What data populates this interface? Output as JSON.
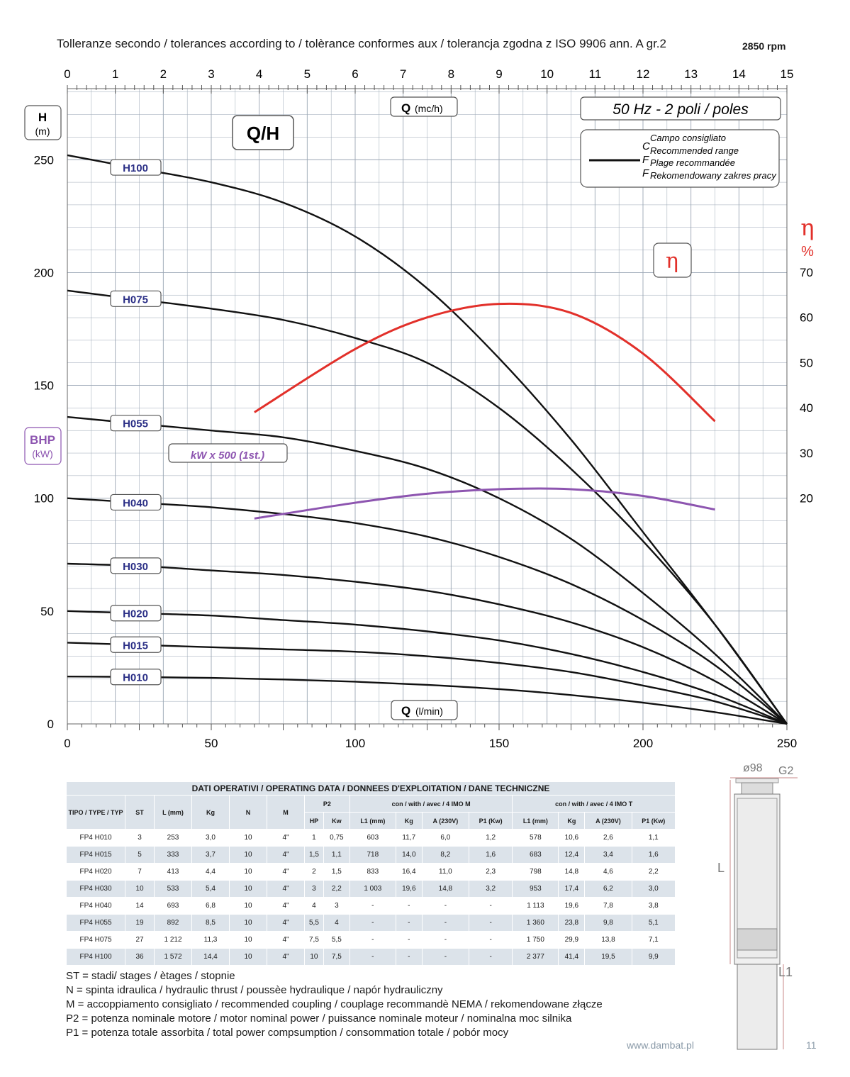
{
  "header": {
    "tolerance_text": "Tolleranze secondo / tolerances according to / tolèrance conformes aux / tolerancja zgodna z ISO 9906 ann. A gr.2",
    "rpm": "2850 rpm"
  },
  "chart_data": {
    "type": "line",
    "title": "Q/H",
    "frequency_label": "50 Hz - 2 poli / poles",
    "x_top_label": "Q (mc/h)",
    "x_top_label_main": "Q",
    "x_top_label_unit": "(mc/h)",
    "x_bottom_label_main": "Q",
    "x_bottom_label_unit": "(l/min)",
    "y_left_label_main": "H",
    "y_left_label_unit": "(m)",
    "y_right_label_main": "η",
    "y_right_label_unit": "%",
    "eta_box_label": "η",
    "bhp_label_main": "BHP",
    "bhp_label_unit": "(kW)",
    "bhp_note": "kW x 500 (1st.)",
    "legend_lines": [
      "Campo consigliato",
      "Recommended range",
      "Plage recommandée",
      "Rekomendowany zakres pracy"
    ],
    "legend_letters": [
      "C",
      "F",
      "F"
    ],
    "xlim_top": [
      0,
      15
    ],
    "xlim_bottom": [
      0,
      250
    ],
    "ylim_left": [
      0,
      280
    ],
    "ylim_right_ticks": [
      20,
      30,
      40,
      50,
      60,
      70
    ],
    "x_top_ticks": [
      0,
      1,
      2,
      3,
      4,
      5,
      6,
      7,
      8,
      9,
      10,
      11,
      12,
      13,
      14,
      15
    ],
    "x_bottom_ticks": [
      0,
      50,
      100,
      150,
      200,
      250
    ],
    "y_left_ticks": [
      0,
      50,
      100,
      150,
      200,
      250
    ],
    "series": [
      {
        "name": "H100",
        "x": [
          0,
          25,
          50,
          75,
          100,
          125,
          150,
          175,
          200,
          225,
          250
        ],
        "y": [
          252,
          246,
          240,
          231,
          216,
          193,
          162,
          126,
          85,
          44,
          0
        ]
      },
      {
        "name": "H075",
        "x": [
          0,
          25,
          50,
          75,
          100,
          125,
          150,
          175,
          200,
          225,
          250
        ],
        "y": [
          192,
          188,
          184,
          179,
          171,
          160,
          140,
          113,
          81,
          44,
          0
        ]
      },
      {
        "name": "H055",
        "x": [
          0,
          25,
          50,
          75,
          100,
          125,
          150,
          175,
          200,
          225,
          250
        ],
        "y": [
          136,
          133,
          130,
          127,
          121,
          113,
          100,
          82,
          58,
          31,
          0
        ]
      },
      {
        "name": "H040",
        "x": [
          0,
          25,
          50,
          75,
          100,
          125,
          150,
          175,
          200,
          225,
          250
        ],
        "y": [
          100,
          98,
          96,
          93,
          89,
          83,
          74,
          62,
          46,
          26,
          0
        ]
      },
      {
        "name": "H030",
        "x": [
          0,
          25,
          50,
          75,
          100,
          125,
          150,
          175,
          200,
          225,
          250
        ],
        "y": [
          71,
          70,
          68,
          66,
          63,
          59,
          53,
          45,
          34,
          19,
          0
        ]
      },
      {
        "name": "H020",
        "x": [
          0,
          25,
          50,
          75,
          100,
          125,
          150,
          175,
          200,
          225,
          250
        ],
        "y": [
          50,
          49,
          48,
          46,
          44,
          41,
          37,
          31,
          23,
          13,
          0
        ]
      },
      {
        "name": "H015",
        "x": [
          0,
          25,
          50,
          75,
          100,
          125,
          150,
          175,
          200,
          225,
          250
        ],
        "y": [
          36,
          35,
          34,
          33,
          32,
          30,
          27,
          23,
          17,
          10,
          0
        ]
      },
      {
        "name": "H010",
        "x": [
          0,
          25,
          50,
          75,
          100,
          125,
          150,
          175,
          200,
          225,
          250
        ],
        "y": [
          21,
          20.8,
          20.4,
          19.7,
          18.7,
          17.3,
          15.4,
          12.8,
          9.4,
          5.2,
          0
        ]
      }
    ],
    "efficiency_series": {
      "x": [
        65,
        100,
        125,
        150,
        175,
        200,
        225
      ],
      "y": [
        39,
        53,
        60,
        63,
        61,
        52,
        37
      ]
    },
    "bhp_series": {
      "x": [
        65,
        100,
        125,
        150,
        175,
        200,
        225
      ],
      "y": [
        91,
        98,
        102,
        104,
        104,
        101,
        95
      ]
    }
  },
  "table": {
    "title": "DATI OPERATIVI / OPERATING DATA / DONNEES D'EXPLOITATION / DANE TECHNICZNE",
    "headers": {
      "type": "TIPO / TYPE / TYP",
      "st": "ST",
      "l": "L (mm)",
      "kg": "Kg",
      "n": "N",
      "m": "M",
      "p2": "P2",
      "hp": "HP",
      "kw": "Kw",
      "group_m": "con / with / avec / 4 IMO M",
      "group_t": "con / with / avec / 4 IMO T",
      "l1": "L1 (mm)",
      "a": "A (230V)",
      "p1": "P1 (Kw)"
    },
    "rows": [
      [
        "FP4 H010",
        "3",
        "253",
        "3,0",
        "10",
        "4\"",
        "1",
        "0,75",
        "603",
        "11,7",
        "6,0",
        "1,2",
        "578",
        "10,6",
        "2,6",
        "1,1"
      ],
      [
        "FP4 H015",
        "5",
        "333",
        "3,7",
        "10",
        "4\"",
        "1,5",
        "1,1",
        "718",
        "14,0",
        "8,2",
        "1,6",
        "683",
        "12,4",
        "3,4",
        "1,6"
      ],
      [
        "FP4 H020",
        "7",
        "413",
        "4,4",
        "10",
        "4\"",
        "2",
        "1,5",
        "833",
        "16,4",
        "11,0",
        "2,3",
        "798",
        "14,8",
        "4,6",
        "2,2"
      ],
      [
        "FP4 H030",
        "10",
        "533",
        "5,4",
        "10",
        "4\"",
        "3",
        "2,2",
        "1 003",
        "19,6",
        "14,8",
        "3,2",
        "953",
        "17,4",
        "6,2",
        "3,0"
      ],
      [
        "FP4 H040",
        "14",
        "693",
        "6,8",
        "10",
        "4\"",
        "4",
        "3",
        "-",
        "-",
        "-",
        "-",
        "1 113",
        "19,6",
        "7,8",
        "3,8"
      ],
      [
        "FP4 H055",
        "19",
        "892",
        "8,5",
        "10",
        "4\"",
        "5,5",
        "4",
        "-",
        "-",
        "-",
        "-",
        "1 360",
        "23,8",
        "9,8",
        "5,1"
      ],
      [
        "FP4 H075",
        "27",
        "1 212",
        "11,3",
        "10",
        "4\"",
        "7,5",
        "5,5",
        "-",
        "-",
        "-",
        "-",
        "1 750",
        "29,9",
        "13,8",
        "7,1"
      ],
      [
        "FP4 H100",
        "36",
        "1 572",
        "14,4",
        "10",
        "4\"",
        "10",
        "7,5",
        "-",
        "-",
        "-",
        "-",
        "2 377",
        "41,4",
        "19,5",
        "9,9"
      ]
    ]
  },
  "notes": [
    "ST = stadi/ stages / ètages / stopnie",
    "N  = spinta idraulica / hydraulic thrust / poussèe hydraulique / napór hydrauliczny",
    "M  = accoppiamento consigliato / recommended coupling / couplage recommandè     NEMA / rekomendowane złącze",
    "P2 = potenza nominale motore / motor nominal power / puissance nominale moteur / nominalna moc silnika",
    "P1 = potenza totale assorbita / total power compsumption / consommation totale / pobór mocy"
  ],
  "pump_drawing": {
    "diameter": "ø98",
    "thread": "G2",
    "l": "L",
    "l1": "L1"
  },
  "footer": {
    "url": "www.dambat.pl",
    "page": "11"
  },
  "colors": {
    "grid": "#9aa6b4",
    "curve": "#111111",
    "efficiency": "#e2302a",
    "bhp": "#8d55b0",
    "label_box_text": "#2b2f86",
    "eta_text": "#e2302a",
    "bhp_text": "#8d55b0"
  }
}
